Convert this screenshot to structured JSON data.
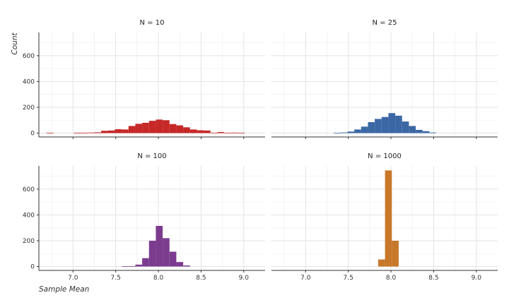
{
  "chart_data": {
    "type": "bar",
    "xlabel": "Sample Mean",
    "ylabel": "Count",
    "xlim": [
      6.6,
      9.25
    ],
    "ylim": [
      -30,
      780
    ],
    "x_ticks": [
      7.0,
      7.5,
      8.0,
      8.5,
      9.0
    ],
    "y_ticks": [
      0,
      200,
      400,
      600
    ],
    "x_tick_labels": [
      "7.0",
      "7.5",
      "8.0",
      "8.5",
      "9.0"
    ],
    "y_tick_labels": [
      "0",
      "200",
      "400",
      "600"
    ],
    "bin_width": 0.08,
    "grid": true,
    "panels": [
      {
        "title": "N = 10",
        "color": "#c62828",
        "bins": [
          {
            "x": 6.73,
            "count": 3
          },
          {
            "x": 7.05,
            "count": 2
          },
          {
            "x": 7.13,
            "count": 3
          },
          {
            "x": 7.21,
            "count": 4
          },
          {
            "x": 7.29,
            "count": 6
          },
          {
            "x": 7.37,
            "count": 18
          },
          {
            "x": 7.45,
            "count": 20
          },
          {
            "x": 7.53,
            "count": 30
          },
          {
            "x": 7.61,
            "count": 28
          },
          {
            "x": 7.69,
            "count": 55
          },
          {
            "x": 7.77,
            "count": 72
          },
          {
            "x": 7.85,
            "count": 80
          },
          {
            "x": 7.93,
            "count": 95
          },
          {
            "x": 8.01,
            "count": 105
          },
          {
            "x": 8.09,
            "count": 100
          },
          {
            "x": 8.17,
            "count": 70
          },
          {
            "x": 8.25,
            "count": 60
          },
          {
            "x": 8.33,
            "count": 45
          },
          {
            "x": 8.41,
            "count": 28
          },
          {
            "x": 8.49,
            "count": 22
          },
          {
            "x": 8.57,
            "count": 20
          },
          {
            "x": 8.65,
            "count": 3
          },
          {
            "x": 8.73,
            "count": 8
          },
          {
            "x": 8.81,
            "count": 3
          },
          {
            "x": 8.89,
            "count": 4
          },
          {
            "x": 8.97,
            "count": 3
          }
        ]
      },
      {
        "title": "N = 25",
        "color": "#3b68a5",
        "bins": [
          {
            "x": 7.37,
            "count": 3
          },
          {
            "x": 7.45,
            "count": 5
          },
          {
            "x": 7.53,
            "count": 12
          },
          {
            "x": 7.61,
            "count": 28
          },
          {
            "x": 7.69,
            "count": 50
          },
          {
            "x": 7.77,
            "count": 85
          },
          {
            "x": 7.85,
            "count": 110
          },
          {
            "x": 7.93,
            "count": 125
          },
          {
            "x": 8.01,
            "count": 155
          },
          {
            "x": 8.09,
            "count": 135
          },
          {
            "x": 8.17,
            "count": 90
          },
          {
            "x": 8.25,
            "count": 55
          },
          {
            "x": 8.33,
            "count": 25
          },
          {
            "x": 8.41,
            "count": 15
          },
          {
            "x": 8.49,
            "count": 5
          }
        ]
      },
      {
        "title": "N = 100",
        "color": "#7b3c8f",
        "bins": [
          {
            "x": 7.61,
            "count": 2
          },
          {
            "x": 7.69,
            "count": 3
          },
          {
            "x": 7.77,
            "count": 15
          },
          {
            "x": 7.85,
            "count": 65
          },
          {
            "x": 7.93,
            "count": 200
          },
          {
            "x": 8.01,
            "count": 315
          },
          {
            "x": 8.09,
            "count": 220
          },
          {
            "x": 8.17,
            "count": 115
          },
          {
            "x": 8.25,
            "count": 35
          },
          {
            "x": 8.33,
            "count": 8
          }
        ]
      },
      {
        "title": "N = 1000",
        "color": "#c8782a",
        "bins": [
          {
            "x": 7.89,
            "count": 55
          },
          {
            "x": 7.97,
            "count": 745
          },
          {
            "x": 8.05,
            "count": 200
          }
        ]
      }
    ]
  }
}
